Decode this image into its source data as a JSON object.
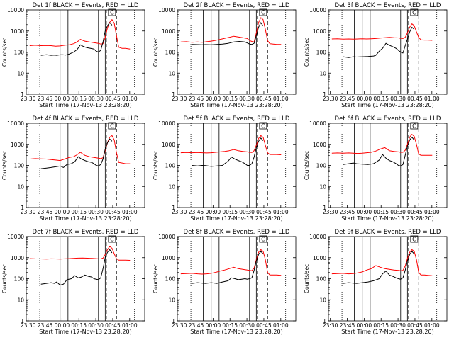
{
  "chart_data": {
    "type": "line",
    "layout": "3x3 grid of panels",
    "shared": {
      "ylabel": "Counts/sec",
      "xlabel": "Start Time (17-Nov-13 23:28:20)",
      "y_scale": "log",
      "ylim": [
        1,
        10000
      ],
      "ytick_labels": [
        "1",
        "10",
        "100",
        "1000",
        "10000"
      ],
      "xlim": [
        0,
        105
      ],
      "xtick_labels": [
        "23:30",
        "23:45",
        "00:00",
        "00:15",
        "00:30",
        "00:45",
        "01:00"
      ],
      "xtick_values": [
        1.67,
        16.67,
        31.67,
        46.67,
        61.67,
        76.67,
        91.67
      ],
      "series_colors": {
        "events": "#000000",
        "lld": "#ff0000"
      },
      "dotted_lines_x": [
        12,
        96
      ],
      "solid_lines_x": [
        23,
        30,
        37,
        64,
        70
      ],
      "dashed_lines_x": [
        71,
        80
      ],
      "marker_label": "C",
      "marker_x": 76
    },
    "panels": [
      {
        "title": "Det  1f  BLACK = Events,  RED = LLD",
        "events": {
          "x": [
            13,
            18,
            22,
            25,
            27,
            30,
            32,
            35,
            38,
            42,
            45,
            48,
            51,
            54,
            57,
            60,
            62,
            64,
            66,
            68,
            70,
            72,
            74,
            76
          ],
          "y": [
            70,
            75,
            70,
            72,
            70,
            74,
            75,
            72,
            80,
            100,
            130,
            220,
            180,
            160,
            150,
            140,
            110,
            100,
            120,
            300,
            1000,
            1800,
            2500,
            1900
          ]
        },
        "lld": {
          "x": [
            3,
            8,
            13,
            18,
            22,
            26,
            30,
            34,
            38,
            42,
            45,
            48,
            52,
            56,
            60,
            64,
            66,
            68,
            70,
            72,
            74,
            76,
            78,
            80,
            82,
            85,
            88,
            92
          ],
          "y": [
            200,
            210,
            200,
            205,
            200,
            190,
            195,
            210,
            220,
            250,
            300,
            400,
            330,
            300,
            280,
            260,
            240,
            250,
            500,
            1400,
            2600,
            3500,
            2300,
            600,
            170,
            150,
            150,
            140
          ]
        }
      },
      {
        "title": "Det  2f  BLACK = Events,  RED = LLD",
        "events": {
          "x": [
            13,
            18,
            22,
            25,
            30,
            35,
            40,
            45,
            50,
            55,
            60,
            62,
            64,
            66,
            68,
            70,
            72,
            74,
            76
          ],
          "y": [
            230,
            225,
            220,
            225,
            220,
            230,
            240,
            260,
            300,
            320,
            300,
            270,
            240,
            230,
            260,
            600,
            1500,
            2500,
            1700
          ]
        },
        "lld": {
          "x": [
            3,
            8,
            13,
            18,
            22,
            26,
            30,
            34,
            38,
            42,
            46,
            50,
            54,
            58,
            62,
            64,
            66,
            68,
            70,
            72,
            74,
            76,
            78,
            80,
            82,
            85,
            88,
            92
          ],
          "y": [
            300,
            310,
            290,
            300,
            290,
            310,
            330,
            360,
            400,
            450,
            500,
            560,
            520,
            480,
            440,
            350,
            320,
            300,
            800,
            2500,
            4300,
            3500,
            1200,
            350,
            250,
            240,
            230,
            230
          ]
        }
      },
      {
        "title": "Det  3f  BLACK = Events,  RED = LLD",
        "events": {
          "x": [
            13,
            18,
            22,
            25,
            30,
            35,
            40,
            42,
            45,
            48,
            51,
            54,
            57,
            60,
            62,
            64,
            66,
            68,
            70,
            72,
            74,
            76
          ],
          "y": [
            60,
            55,
            60,
            58,
            60,
            62,
            65,
            70,
            110,
            150,
            260,
            210,
            180,
            150,
            120,
            100,
            90,
            200,
            400,
            900,
            1500,
            1200
          ]
        },
        "lld": {
          "x": [
            3,
            8,
            13,
            18,
            22,
            26,
            30,
            34,
            38,
            42,
            46,
            50,
            54,
            58,
            62,
            64,
            66,
            68,
            70,
            72,
            74,
            76,
            78,
            80,
            82,
            85,
            88,
            92
          ],
          "y": [
            420,
            430,
            410,
            420,
            410,
            420,
            430,
            420,
            430,
            440,
            460,
            480,
            500,
            480,
            470,
            450,
            440,
            500,
            800,
            1500,
            2200,
            1800,
            900,
            500,
            380,
            370,
            370,
            360
          ]
        }
      },
      {
        "title": "Det  4f  BLACK = Events,  RED = LLD",
        "events": {
          "x": [
            13,
            18,
            22,
            25,
            28,
            30,
            33,
            36,
            40,
            43,
            46,
            49,
            52,
            55,
            58,
            60,
            62,
            64,
            66,
            68,
            70,
            72,
            74,
            76
          ],
          "y": [
            70,
            75,
            80,
            85,
            90,
            95,
            80,
            110,
            120,
            150,
            260,
            200,
            170,
            150,
            140,
            120,
            100,
            95,
            110,
            200,
            600,
            1200,
            1800,
            1400
          ]
        },
        "lld": {
          "x": [
            3,
            8,
            13,
            18,
            22,
            26,
            30,
            34,
            38,
            42,
            45,
            48,
            52,
            56,
            60,
            64,
            66,
            68,
            70,
            72,
            74,
            76,
            78,
            80,
            82,
            85,
            88,
            92
          ],
          "y": [
            200,
            210,
            205,
            200,
            190,
            180,
            170,
            200,
            240,
            260,
            320,
            420,
            300,
            260,
            240,
            220,
            210,
            230,
            500,
            1200,
            2200,
            2600,
            1600,
            400,
            140,
            130,
            120,
            120
          ]
        }
      },
      {
        "title": "Det  5f  BLACK = Events,  RED = LLD",
        "events": {
          "x": [
            13,
            18,
            22,
            25,
            30,
            35,
            40,
            45,
            48,
            51,
            54,
            57,
            60,
            62,
            64,
            66,
            68,
            70,
            72,
            74,
            76
          ],
          "y": [
            100,
            95,
            100,
            98,
            90,
            95,
            100,
            160,
            250,
            200,
            170,
            150,
            120,
            100,
            100,
            120,
            250,
            700,
            1400,
            2000,
            1500
          ]
        },
        "lld": {
          "x": [
            3,
            8,
            13,
            18,
            22,
            26,
            30,
            34,
            38,
            42,
            46,
            50,
            54,
            58,
            62,
            64,
            66,
            68,
            70,
            72,
            74,
            76,
            78,
            80,
            82,
            85,
            88,
            92
          ],
          "y": [
            400,
            410,
            400,
            410,
            400,
            390,
            400,
            420,
            440,
            460,
            500,
            560,
            500,
            460,
            440,
            420,
            410,
            500,
            900,
            1900,
            2600,
            2200,
            900,
            400,
            330,
            330,
            330,
            320
          ]
        }
      },
      {
        "title": "Det  6f  BLACK = Events,  RED = LLD",
        "events": {
          "x": [
            13,
            18,
            22,
            25,
            30,
            35,
            40,
            45,
            48,
            51,
            54,
            57,
            60,
            62,
            64,
            66,
            68,
            70,
            72,
            74,
            76
          ],
          "y": [
            110,
            120,
            130,
            120,
            115,
            110,
            120,
            180,
            330,
            220,
            170,
            150,
            120,
            100,
            95,
            110,
            300,
            800,
            1600,
            2200,
            1600
          ]
        },
        "lld": {
          "x": [
            3,
            8,
            13,
            18,
            22,
            26,
            30,
            34,
            38,
            42,
            46,
            50,
            54,
            58,
            62,
            64,
            66,
            68,
            70,
            72,
            74,
            76,
            78,
            80,
            82,
            85,
            88,
            92
          ],
          "y": [
            380,
            390,
            380,
            390,
            380,
            370,
            380,
            400,
            420,
            480,
            600,
            700,
            500,
            460,
            440,
            420,
            420,
            520,
            1000,
            2200,
            3000,
            2400,
            1000,
            350,
            300,
            300,
            300,
            300
          ]
        }
      },
      {
        "title": "Det  7f  BLACK = Events,  RED = LLD",
        "events": {
          "x": [
            13,
            18,
            22,
            25,
            27,
            30,
            33,
            36,
            40,
            43,
            46,
            49,
            52,
            55,
            58,
            60,
            62,
            64,
            66,
            68,
            70,
            72,
            74,
            76
          ],
          "y": [
            55,
            60,
            65,
            60,
            70,
            50,
            55,
            90,
            100,
            140,
            110,
            120,
            150,
            130,
            120,
            100,
            95,
            90,
            110,
            300,
            1000,
            1800,
            2400,
            1700
          ]
        },
        "lld": {
          "x": [
            3,
            8,
            13,
            18,
            22,
            26,
            30,
            34,
            38,
            42,
            46,
            50,
            54,
            58,
            62,
            64,
            66,
            68,
            70,
            72,
            74,
            76,
            78,
            80,
            82,
            85,
            88,
            92
          ],
          "y": [
            900,
            880,
            870,
            860,
            880,
            870,
            860,
            880,
            900,
            920,
            950,
            960,
            940,
            920,
            900,
            880,
            870,
            950,
            1400,
            2400,
            3400,
            2800,
            1500,
            900,
            760,
            760,
            760,
            750
          ]
        }
      },
      {
        "title": "Det  8f  BLACK = Events,  RED = LLD",
        "events": {
          "x": [
            13,
            18,
            22,
            25,
            30,
            35,
            40,
            45,
            48,
            51,
            54,
            57,
            60,
            62,
            64,
            66,
            68,
            70,
            72,
            74,
            76
          ],
          "y": [
            60,
            65,
            62,
            60,
            65,
            60,
            70,
            80,
            110,
            100,
            90,
            95,
            100,
            95,
            100,
            110,
            250,
            700,
            1400,
            2000,
            1500
          ]
        },
        "lld": {
          "x": [
            3,
            8,
            13,
            18,
            22,
            26,
            30,
            34,
            38,
            42,
            46,
            50,
            54,
            58,
            62,
            64,
            66,
            68,
            70,
            72,
            74,
            76,
            78,
            80,
            82,
            85,
            88,
            92
          ],
          "y": [
            170,
            175,
            180,
            170,
            165,
            170,
            180,
            200,
            230,
            260,
            300,
            350,
            300,
            280,
            260,
            250,
            240,
            320,
            800,
            1800,
            2400,
            2000,
            800,
            200,
            150,
            150,
            150,
            145
          ]
        }
      },
      {
        "title": "Det  9f  BLACK = Events,  RED = LLD",
        "events": {
          "x": [
            13,
            18,
            22,
            25,
            30,
            35,
            40,
            45,
            48,
            51,
            54,
            57,
            60,
            62,
            64,
            66,
            68,
            70,
            72,
            74,
            76
          ],
          "y": [
            60,
            65,
            62,
            60,
            65,
            70,
            80,
            100,
            170,
            230,
            150,
            130,
            110,
            100,
            95,
            110,
            250,
            700,
            1400,
            2000,
            1500
          ]
        },
        "lld": {
          "x": [
            3,
            8,
            13,
            18,
            22,
            26,
            30,
            34,
            38,
            42,
            46,
            50,
            54,
            58,
            62,
            64,
            66,
            68,
            70,
            72,
            74,
            76,
            78,
            80,
            82,
            85,
            88,
            92
          ],
          "y": [
            170,
            175,
            180,
            170,
            175,
            190,
            210,
            260,
            300,
            420,
            350,
            300,
            280,
            260,
            250,
            240,
            250,
            400,
            900,
            1800,
            2400,
            2000,
            800,
            200,
            150,
            150,
            145,
            140
          ]
        }
      }
    ]
  }
}
